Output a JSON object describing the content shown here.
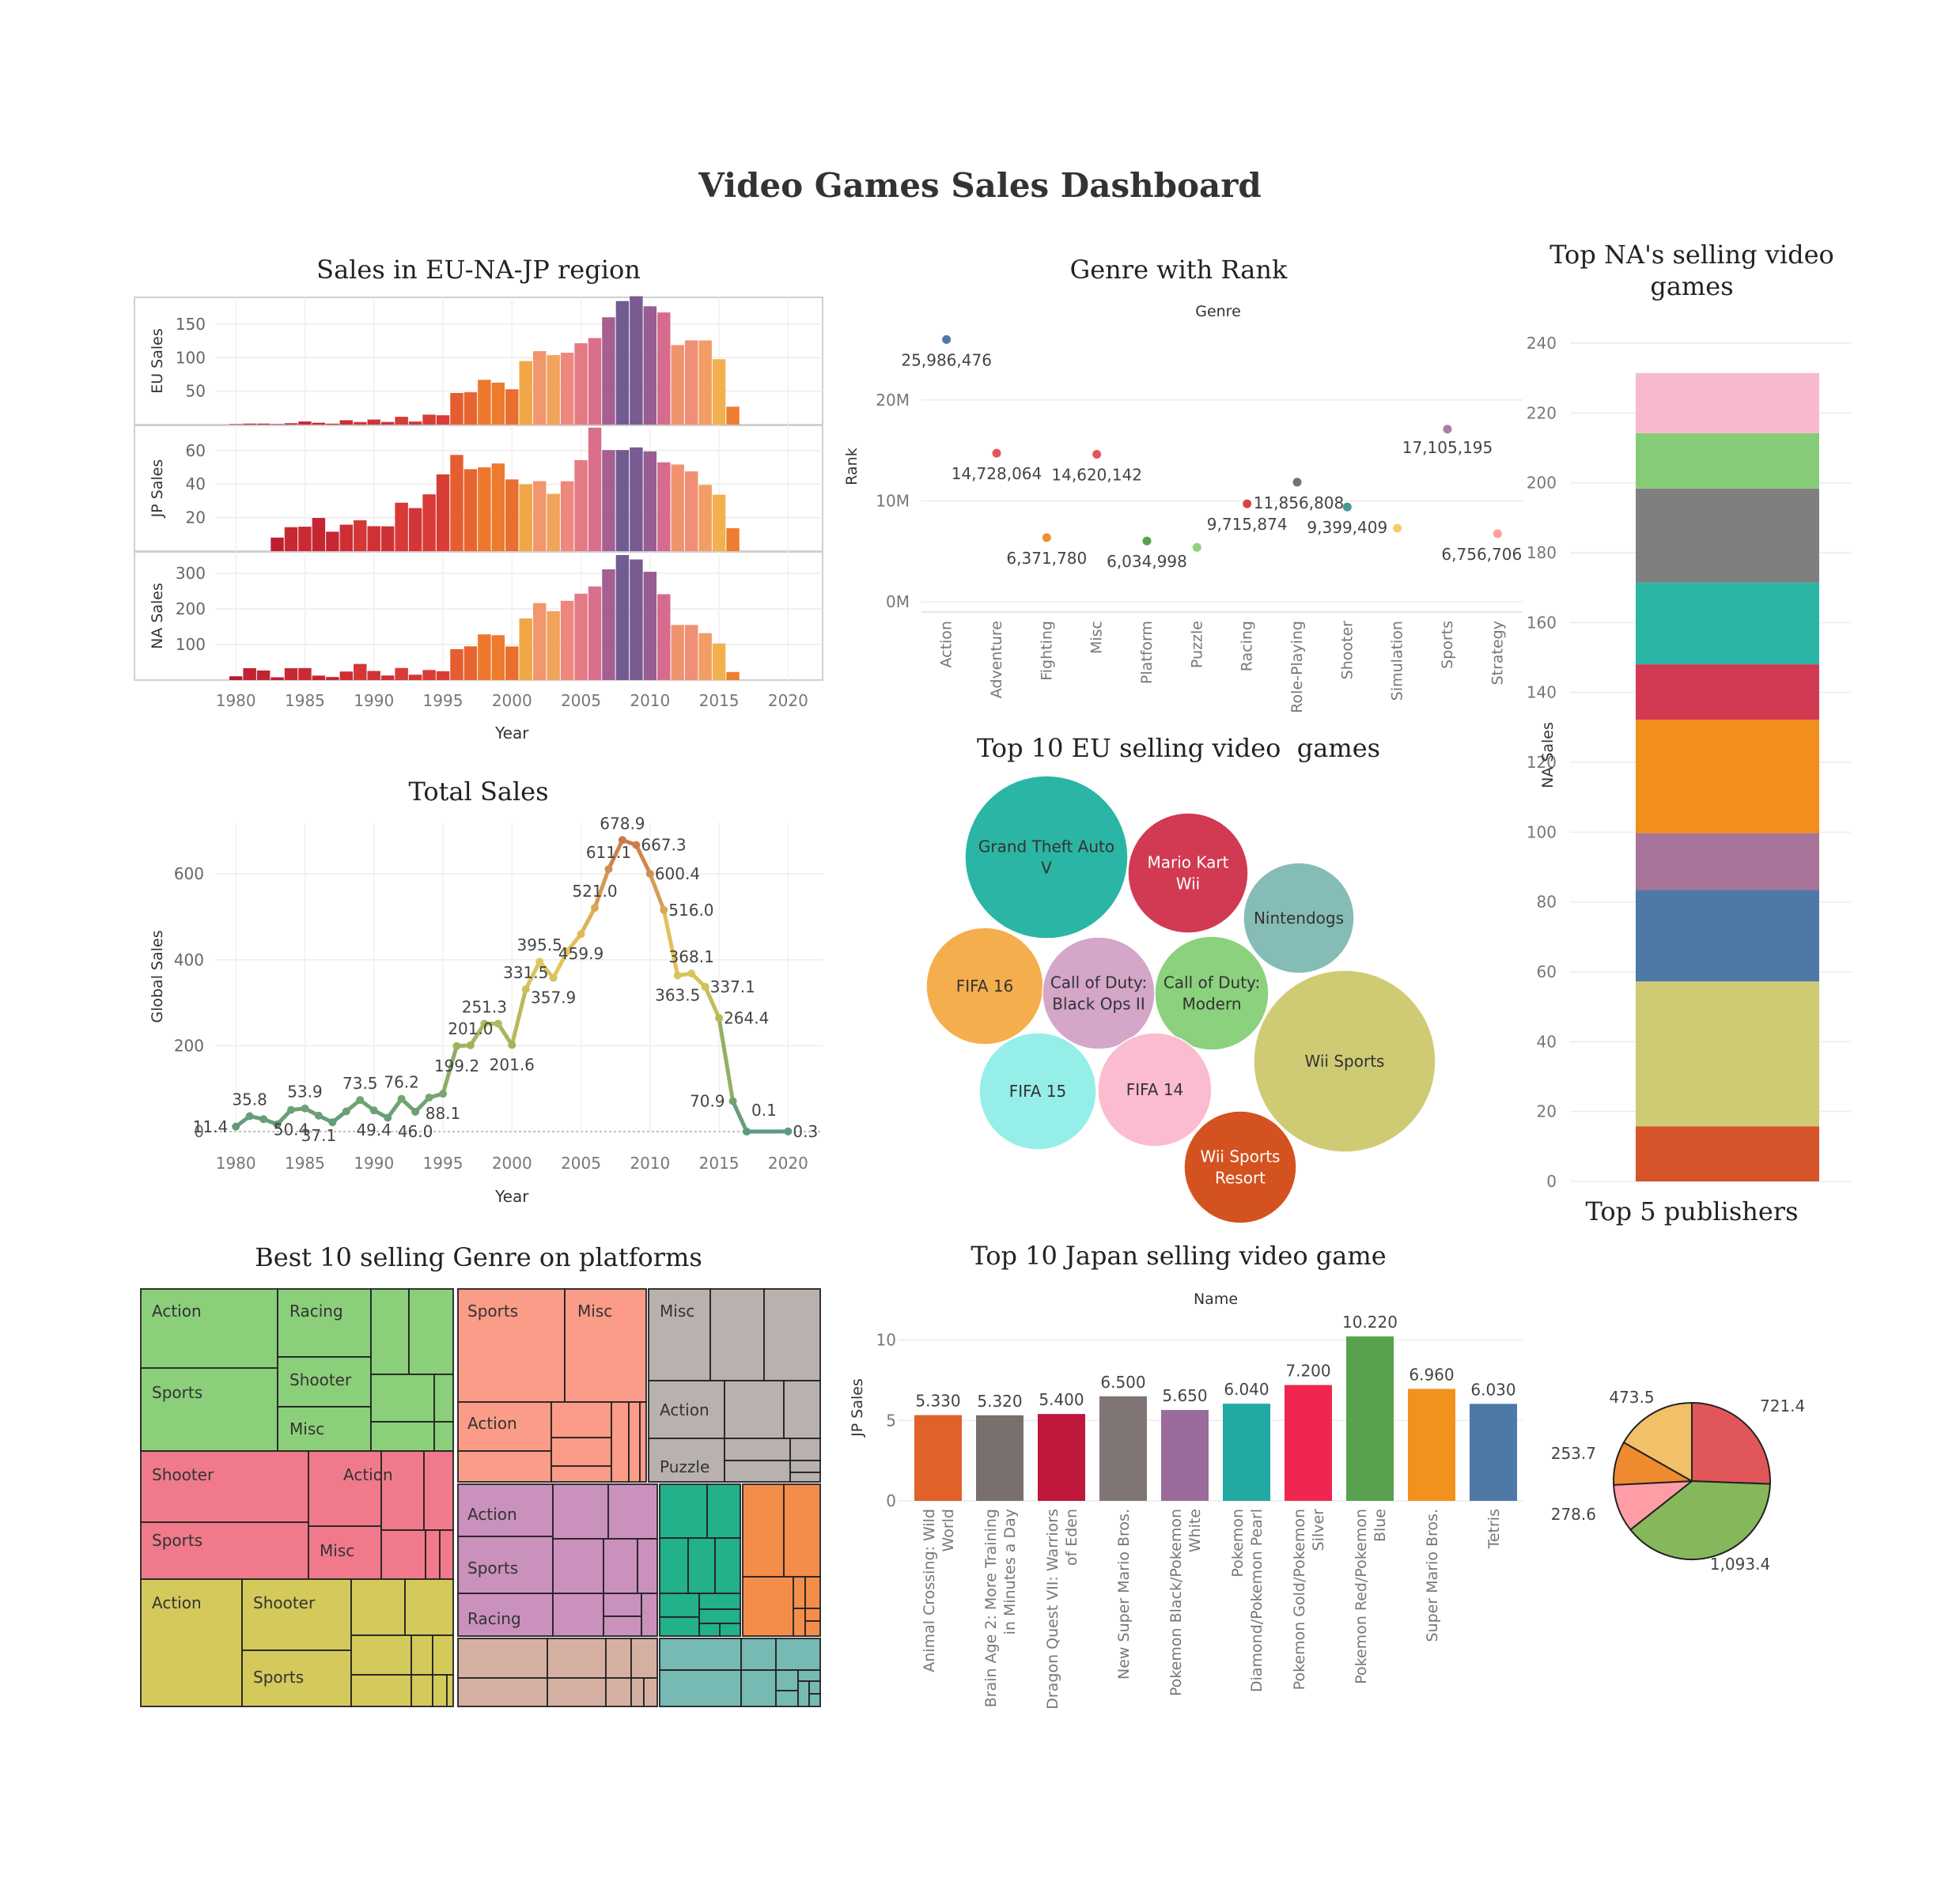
{
  "dashboard": {
    "title": "Video Games Sales Dashboard"
  },
  "chart_data": [
    {
      "id": "region",
      "type": "bar",
      "title": "Sales in EU-NA-JP region",
      "xlabel": "Year",
      "x_ticks": [
        "1980",
        "1985",
        "1990",
        "1995",
        "2000",
        "2005",
        "2010",
        "2015",
        "2020"
      ],
      "panels": [
        {
          "ylabel": "EU Sales",
          "y_ticks": [
            50,
            100,
            150
          ],
          "ylim": [
            0,
            190
          ]
        },
        {
          "ylabel": "JP Sales",
          "y_ticks": [
            20,
            40,
            60
          ],
          "ylim": [
            0,
            75
          ]
        },
        {
          "ylabel": "NA Sales",
          "y_ticks": [
            100,
            200,
            300
          ],
          "ylim": [
            0,
            360
          ]
        }
      ],
      "years": [
        1980,
        1981,
        1982,
        1983,
        1984,
        1985,
        1986,
        1987,
        1988,
        1989,
        1990,
        1991,
        1992,
        1993,
        1994,
        1995,
        1996,
        1997,
        1998,
        1999,
        2000,
        2001,
        2002,
        2003,
        2004,
        2005,
        2006,
        2007,
        2008,
        2009,
        2010,
        2011,
        2012,
        2013,
        2014,
        2015,
        2016
      ],
      "series": [
        {
          "name": "EU Sales",
          "values": [
            0.7,
            1.5,
            1.5,
            0.8,
            2.1,
            4.7,
            2.8,
            1.4,
            6.6,
            3.9,
            7.6,
            4.0,
            11.7,
            4.6,
            14.9,
            14.0,
            47.3,
            48.3,
            66.9,
            62.7,
            52.8,
            94.9,
            109.7,
            103.8,
            107.3,
            121.5,
            129.2,
            160.2,
            184.4,
            191.6,
            176.6,
            167.4,
            118.8,
            125.8,
            125.7,
            97.7,
            26.8
          ]
        },
        {
          "name": "JP Sales",
          "values": [
            0,
            0,
            0,
            8.1,
            14.3,
            14.6,
            19.8,
            11.6,
            15.8,
            18.4,
            14.9,
            14.8,
            28.9,
            25.7,
            33.9,
            45.8,
            57.4,
            48.9,
            50.0,
            52.3,
            42.8,
            39.9,
            41.8,
            34.2,
            41.7,
            54.3,
            73.7,
            60.3,
            60.3,
            61.9,
            59.5,
            53.0,
            51.7,
            47.6,
            39.5,
            33.7,
            13.7
          ]
        },
        {
          "name": "NA Sales",
          "values": [
            10.6,
            33.4,
            26.9,
            7.8,
            33.3,
            33.7,
            12.5,
            8.5,
            23.9,
            45.2,
            25.5,
            12.8,
            33.9,
            15.1,
            28.2,
            24.8,
            86.8,
            94.8,
            128.4,
            126.1,
            94.5,
            173.1,
            216.2,
            193.6,
            222.6,
            242.6,
            263.1,
            311.1,
            351.4,
            338.9,
            304.2,
            241.2,
            154.9,
            154.8,
            131.9,
            102.8,
            22.7
          ]
        }
      ]
    },
    {
      "id": "total",
      "type": "line",
      "title": "Total Sales",
      "xlabel": "Year",
      "ylabel": "Global Sales",
      "x_ticks": [
        "1980",
        "1985",
        "1990",
        "1995",
        "2000",
        "2005",
        "2010",
        "2015",
        "2020"
      ],
      "y_ticks": [
        0,
        200,
        400,
        600
      ],
      "ylim": [
        0,
        720
      ],
      "x": [
        1980,
        1981,
        1982,
        1983,
        1984,
        1985,
        1986,
        1987,
        1988,
        1989,
        1990,
        1991,
        1992,
        1993,
        1994,
        1995,
        1996,
        1997,
        1998,
        1999,
        2000,
        2001,
        2002,
        2003,
        2004,
        2005,
        2006,
        2007,
        2008,
        2009,
        2010,
        2011,
        2012,
        2013,
        2014,
        2015,
        2016,
        2017,
        2020
      ],
      "values": [
        11.4,
        35.8,
        28.9,
        16.8,
        50.4,
        53.9,
        37.1,
        21.7,
        47.2,
        73.5,
        49.4,
        32.2,
        76.2,
        46.0,
        79.2,
        88.1,
        199.2,
        201.0,
        251.3,
        251.1,
        201.6,
        331.5,
        395.5,
        357.9,
        419.3,
        459.9,
        521.0,
        611.1,
        678.9,
        667.3,
        600.4,
        516.0,
        363.5,
        368.1,
        337.1,
        264.4,
        70.9,
        0.1,
        0.3
      ],
      "labels": [
        {
          "x": 1980,
          "text": "11.4"
        },
        {
          "x": 1981,
          "text": "35.8"
        },
        {
          "x": 1984,
          "text": "50.4"
        },
        {
          "x": 1985,
          "text": "53.9"
        },
        {
          "x": 1986,
          "text": "37.1"
        },
        {
          "x": 1989,
          "text": "73.5"
        },
        {
          "x": 1990,
          "text": "49.4"
        },
        {
          "x": 1992,
          "text": "76.2"
        },
        {
          "x": 1993,
          "text": "46.0"
        },
        {
          "x": 1995,
          "text": "88.1"
        },
        {
          "x": 1996,
          "text": "199.2"
        },
        {
          "x": 1997,
          "text": "201.0"
        },
        {
          "x": 1998,
          "text": "251.3"
        },
        {
          "x": 2000,
          "text": "201.6"
        },
        {
          "x": 2001,
          "text": "331.5"
        },
        {
          "x": 2002,
          "text": "395.5"
        },
        {
          "x": 2003,
          "text": "357.9"
        },
        {
          "x": 2005,
          "text": "459.9"
        },
        {
          "x": 2006,
          "text": "521.0"
        },
        {
          "x": 2007,
          "text": "611.1"
        },
        {
          "x": 2008,
          "text": "678.9"
        },
        {
          "x": 2009,
          "text": "667.3"
        },
        {
          "x": 2010,
          "text": "600.4"
        },
        {
          "x": 2011,
          "text": "516.0"
        },
        {
          "x": 2012,
          "text": "363.5"
        },
        {
          "x": 2013,
          "text": "368.1"
        },
        {
          "x": 2014,
          "text": "337.1"
        },
        {
          "x": 2015,
          "text": "264.4"
        },
        {
          "x": 2016,
          "text": "70.9"
        },
        {
          "x": 2017,
          "text": "0.1"
        },
        {
          "x": 2020,
          "text": "0.3"
        }
      ]
    },
    {
      "id": "genre",
      "type": "scatter",
      "title": "Genre with Rank",
      "header": "Genre",
      "ylabel": "Rank",
      "y_ticks": [
        {
          "v": 0,
          "t": "0M"
        },
        {
          "v": 10000000,
          "t": "10M"
        },
        {
          "v": 20000000,
          "t": "20M"
        }
      ],
      "ylim": [
        -1000000,
        27500000
      ],
      "points": [
        {
          "genre": "Action",
          "value": 25986476,
          "label": "25,986,476",
          "color": "#4e79a7"
        },
        {
          "genre": "Adventure",
          "value": 14728064,
          "label": "14,728,064",
          "color": "#e15759"
        },
        {
          "genre": "Fighting",
          "value": 6371780,
          "label": "6,371,780",
          "color": "#f28e2b"
        },
        {
          "genre": "Misc",
          "value": 14620142,
          "label": "14,620,142",
          "color": "#e15759"
        },
        {
          "genre": "Platform",
          "value": 6034998,
          "label": "6,034,998",
          "color": "#59a14f"
        },
        {
          "genre": "Puzzle",
          "value": 5400000,
          "label": "",
          "color": "#8cd17d"
        },
        {
          "genre": "Racing",
          "value": 9715874,
          "label": "9,715,874",
          "color": "#d4473f"
        },
        {
          "genre": "Role-Playing",
          "value": 11856808,
          "label": "11,856,808",
          "color": "#79706e"
        },
        {
          "genre": "Shooter",
          "value": 9399409,
          "label": "9,399,409",
          "color": "#499894"
        },
        {
          "genre": "Simulation",
          "value": 7300000,
          "label": "",
          "color": "#f1ce63"
        },
        {
          "genre": "Sports",
          "value": 17105195,
          "label": "17,105,195",
          "color": "#b07aa1"
        },
        {
          "genre": "Strategy",
          "value": 6756706,
          "label": "6,756,706",
          "color": "#ff9d9a"
        }
      ]
    },
    {
      "id": "eu_top",
      "type": "bubble",
      "title": "Top 10 EU selling video  games",
      "bubbles": [
        {
          "label": "Grand Theft Auto V",
          "color": "#2bb5a4",
          "text_color": "#333333"
        },
        {
          "label": "Mario Kart Wii",
          "color": "#d13a52",
          "text_color": "#ffffff"
        },
        {
          "label": "Nintendogs",
          "color": "#86bcb6",
          "text_color": "#333333"
        },
        {
          "label": "FIFA 16",
          "color": "#f4ae4d",
          "text_color": "#333333"
        },
        {
          "label": "Call of Duty: Black Ops II",
          "color": "#d4a6c8",
          "text_color": "#333333"
        },
        {
          "label": "Call of Duty: Modern",
          "color": "#8cd17d",
          "text_color": "#333333"
        },
        {
          "label": "Wii Sports",
          "color": "#cfcb74",
          "text_color": "#333333"
        },
        {
          "label": "FIFA 15",
          "color": "#96eee9",
          "text_color": "#333333"
        },
        {
          "label": "FIFA 14",
          "color": "#fbbccf",
          "text_color": "#333333"
        },
        {
          "label": "Wii Sports Resort",
          "color": "#d4521f",
          "text_color": "#ffffff"
        }
      ]
    },
    {
      "id": "na_top",
      "type": "bar",
      "title": "Top NA's selling video games",
      "ylabel": "NA Sales",
      "y_ticks": [
        0,
        20,
        40,
        60,
        80,
        100,
        120,
        140,
        160,
        180,
        200,
        220,
        240
      ],
      "ylim": [
        0,
        240
      ],
      "segments": [
        {
          "value": 15.75,
          "color": "#d6542a"
        },
        {
          "value": 41.49,
          "color": "#cfcb74"
        },
        {
          "value": 26.21,
          "color": "#4e79a7"
        },
        {
          "value": 16.27,
          "color": "#a77399"
        },
        {
          "value": 32.48,
          "color": "#f28e1c"
        },
        {
          "value": 15.85,
          "color": "#d13a52"
        },
        {
          "value": 23.39,
          "color": "#2bb5a4"
        },
        {
          "value": 26.93,
          "color": "#7f7f7f"
        },
        {
          "value": 15.85,
          "color": "#86cc78"
        },
        {
          "value": 17.23,
          "color": "#f7b9cf"
        }
      ]
    },
    {
      "id": "genre_platforms",
      "type": "treemap",
      "title": "Best 10 selling Genre on platforms",
      "labels": [
        "Action",
        "Racing",
        "Shooter",
        "Sports",
        "Misc",
        "Sports",
        "Misc",
        "Action",
        "Misc",
        "Action",
        "Puzzle",
        "Shooter",
        "Sports",
        "Action",
        "Misc",
        "Action",
        "Sports",
        "Racing",
        "Action",
        "Shooter",
        "Sports"
      ]
    },
    {
      "id": "jp_top",
      "type": "bar",
      "title": "Top 10 Japan selling video game",
      "header": "Name",
      "ylabel": "JP Sales",
      "y_ticks": [
        0,
        5,
        10
      ],
      "ylim": [
        0,
        11.6
      ],
      "bars": [
        {
          "name": "Animal Crossing: Wild World",
          "value": 5.33,
          "label": "5.330",
          "color": "#e0622a"
        },
        {
          "name": "Brain Age 2: More Training in Minutes a Day",
          "value": 5.32,
          "label": "5.320",
          "color": "#79706e"
        },
        {
          "name": "Dragon Quest VII: Warriors of Eden",
          "value": 5.4,
          "label": "5.400",
          "color": "#c0173d"
        },
        {
          "name": "New Super Mario Bros.",
          "value": 6.5,
          "label": "6.500",
          "color": "#7f7575"
        },
        {
          "name": "Pokemon Black/Pokemon White",
          "value": 5.65,
          "label": "5.650",
          "color": "#9a6b9b"
        },
        {
          "name": "Pokemon Diamond/Pokemon Pearl",
          "value": 6.04,
          "label": "6.040",
          "color": "#21a9a2"
        },
        {
          "name": "Pokemon Gold/Pokemon Silver",
          "value": 7.2,
          "label": "7.200",
          "color": "#ef2750"
        },
        {
          "name": "Pokemon Red/Pokemon Blue",
          "value": 10.22,
          "label": "10.220",
          "color": "#59a14f"
        },
        {
          "name": "Super Mario Bros.",
          "value": 6.96,
          "label": "6.960",
          "color": "#f2911e"
        },
        {
          "name": "Tetris",
          "value": 6.03,
          "label": "6.030",
          "color": "#4e79a7"
        }
      ]
    },
    {
      "id": "publishers",
      "type": "pie",
      "title": "Top 5 publishers",
      "slices": [
        {
          "value": 721.4,
          "label": "721.4",
          "color": "#e15759"
        },
        {
          "value": 1093.4,
          "label": "1,093.4",
          "color": "#86b75a"
        },
        {
          "value": 278.6,
          "label": "278.6",
          "color": "#ff9da7"
        },
        {
          "value": 253.7,
          "label": "253.7",
          "color": "#ef8a2f"
        },
        {
          "value": 473.5,
          "label": "473.5",
          "color": "#f2c167"
        }
      ]
    }
  ]
}
